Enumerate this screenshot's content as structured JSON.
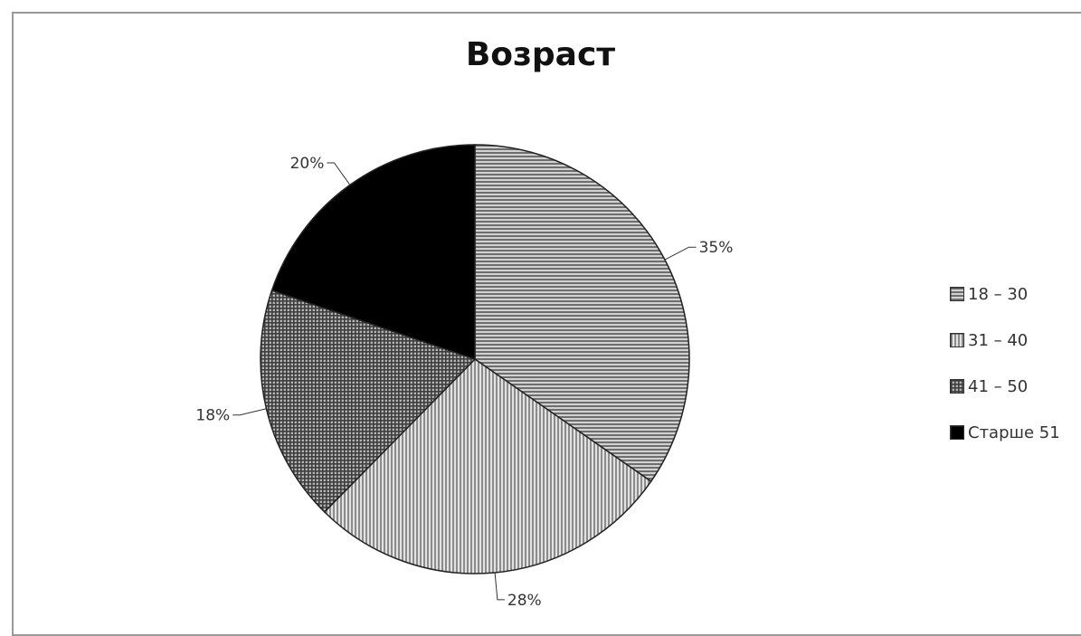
{
  "chart_data": {
    "type": "pie",
    "title": "Возраст",
    "categories": [
      "18 – 30",
      "31 – 40",
      "41 – 50",
      "Старше 51"
    ],
    "values": [
      35,
      28,
      18,
      20
    ],
    "data_labels": [
      "35%",
      "28%",
      "18%",
      "20%"
    ],
    "legend_position": "right",
    "fills": [
      "horizontal-stripes",
      "vertical-stripes",
      "crosshatch",
      "solid-black"
    ],
    "colors": [
      "#8a8a8a",
      "#a0a0a0",
      "#6a6a6a",
      "#000000"
    ]
  }
}
